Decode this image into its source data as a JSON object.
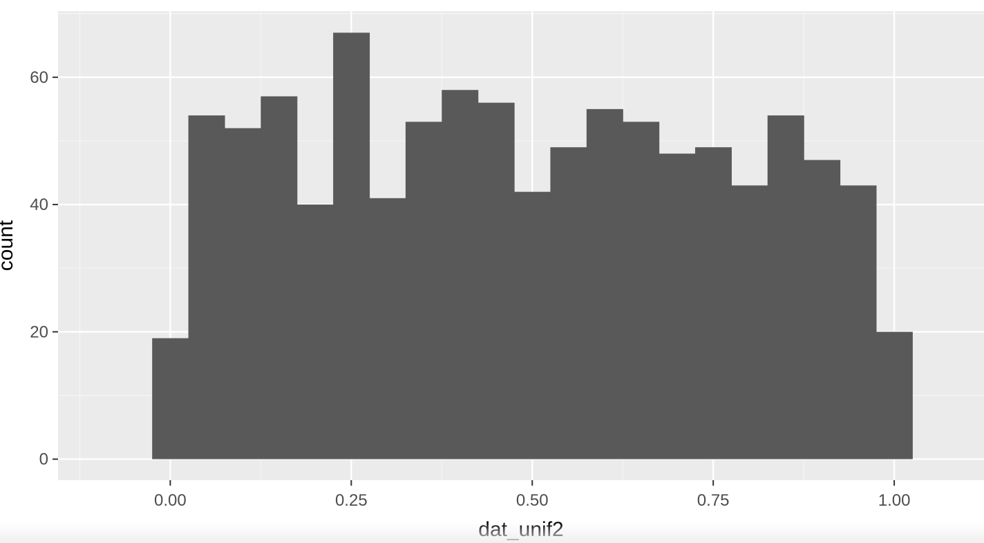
{
  "chart_data": {
    "type": "bar",
    "title": "",
    "xlabel": "dat_unif2",
    "ylabel": "count",
    "bin_width": 0.05,
    "bin_centers": [
      0.0,
      0.05,
      0.1,
      0.15,
      0.2,
      0.25,
      0.3,
      0.35,
      0.4,
      0.45,
      0.5,
      0.55,
      0.6,
      0.65,
      0.7,
      0.75,
      0.8,
      0.85,
      0.9,
      0.95,
      1.0
    ],
    "values": [
      19,
      54,
      52,
      57,
      40,
      67,
      41,
      53,
      58,
      56,
      42,
      49,
      55,
      53,
      48,
      49,
      43,
      54,
      47,
      43,
      20
    ],
    "xlim": [
      -0.155,
      1.124
    ],
    "ylim": [
      -3.3,
      70.4
    ],
    "x_ticks": [
      0.0,
      0.25,
      0.5,
      0.75,
      1.0
    ],
    "x_tick_labels": [
      "0.00",
      "0.25",
      "0.50",
      "0.75",
      "1.00"
    ],
    "y_ticks": [
      0,
      20,
      40,
      60
    ],
    "y_tick_labels": [
      "0",
      "20",
      "40",
      "60"
    ],
    "grid": true,
    "colors": {
      "panel_background": "#ebebeb",
      "grid_major": "#ffffff",
      "grid_minor": "#f5f5f5",
      "bar_fill": "#595959",
      "tick_mark": "#333333"
    }
  }
}
